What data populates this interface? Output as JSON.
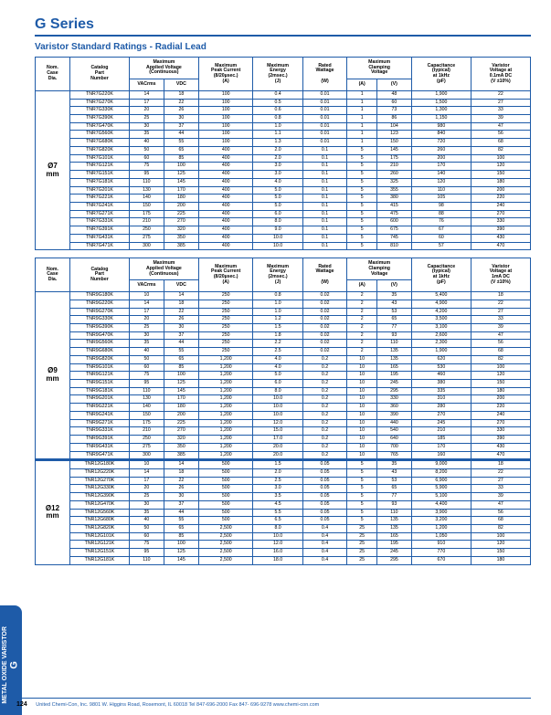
{
  "page_number": "124",
  "title": "G Series",
  "subtitle": "Varistor Standard Ratings - Radial Lead",
  "side_label_main": "G",
  "side_label_sub": "METAL OXIDE VARISTOR",
  "footer": "United Chemi-Con, Inc.  9801 W. Higgins Road, Rosemont, IL 60018  Tel 847-696-2000  Fax 847- 696-9278  www.chemi-con.com",
  "headers": {
    "h1": "Nom.\nCase\nDia.",
    "h2": "Catalog\nPart\nNumber",
    "h3": "Maximum\nApplied Voltage\n(Continuous)",
    "h3a": "VACrms",
    "h3b": "VDC",
    "h4": "Maximum\nPeak Current\n(8/20µsec.)\n(A)",
    "h5": "Maximum\nEnergy\n(2msec.)\n(J)",
    "h6": "Rated\nWattage\n\n(W)",
    "h7": "Maximum\nClamping\nVoltage",
    "h7a": "(A)",
    "h7b": "(V)",
    "h8": "Capacitance\n(typical)\nat 1kHz\n(pF)",
    "h9": "Varistor\nVoltage at\n0.1mA DC\n(V ±10%)",
    "h9b": "Varistor\nVoltage at\n1mA DC\n(V ±10%)"
  },
  "tables": [
    {
      "dia": "Ø7\nmm",
      "rows": [
        [
          "TNR7G220K",
          "14",
          "18",
          "100",
          "0.4",
          "0.01",
          "1",
          "48",
          "1,900",
          "22"
        ],
        [
          "TNR7G270K",
          "17",
          "22",
          "100",
          "0.5",
          "0.01",
          "1",
          "60",
          "1,500",
          "27"
        ],
        [
          "TNR7G330K",
          "20",
          "26",
          "100",
          "0.6",
          "0.01",
          "1",
          "73",
          "1,300",
          "33"
        ],
        [
          "TNR7G390K",
          "25",
          "30",
          "100",
          "0.8",
          "0.01",
          "1",
          "86",
          "1,150",
          "39"
        ],
        [
          "TNR7G470K",
          "30",
          "37",
          "100",
          "1.0",
          "0.01",
          "1",
          "104",
          "980",
          "47"
        ],
        [
          "TNR7G560K",
          "35",
          "44",
          "100",
          "1.1",
          "0.01",
          "1",
          "123",
          "840",
          "56"
        ],
        [
          "TNR7G680K",
          "40",
          "55",
          "100",
          "1.3",
          "0.01",
          "1",
          "150",
          "720",
          "68"
        ],
        [
          "TNR7G820K",
          "50",
          "65",
          "400",
          "2.0",
          "0.1",
          "5",
          "145",
          "260",
          "82"
        ],
        [
          "TNR7G101K",
          "60",
          "85",
          "400",
          "2.0",
          "0.1",
          "5",
          "175",
          "200",
          "100"
        ],
        [
          "TNR7G121K",
          "75",
          "100",
          "400",
          "3.0",
          "0.1",
          "5",
          "210",
          "170",
          "120"
        ],
        [
          "TNR7G151K",
          "95",
          "125",
          "400",
          "3.0",
          "0.1",
          "5",
          "260",
          "140",
          "150"
        ],
        [
          "TNR7G181K",
          "110",
          "145",
          "400",
          "4.0",
          "0.1",
          "5",
          "325",
          "120",
          "180"
        ],
        [
          "TNR7G201K",
          "130",
          "170",
          "400",
          "5.0",
          "0.1",
          "5",
          "355",
          "110",
          "200"
        ],
        [
          "TNR7G221K",
          "140",
          "180",
          "400",
          "5.0",
          "0.1",
          "5",
          "380",
          "105",
          "220"
        ],
        [
          "TNR7G241K",
          "150",
          "200",
          "400",
          "5.0",
          "0.1",
          "5",
          "415",
          "98",
          "240"
        ],
        [
          "TNR7G271K",
          "175",
          "225",
          "400",
          "6.0",
          "0.1",
          "5",
          "475",
          "88",
          "270"
        ],
        [
          "TNR7G331K",
          "210",
          "270",
          "400",
          "8.0",
          "0.1",
          "5",
          "600",
          "76",
          "330"
        ],
        [
          "TNR7G391K",
          "250",
          "320",
          "400",
          "9.0",
          "0.1",
          "5",
          "675",
          "67",
          "390"
        ],
        [
          "TNR7G431K",
          "275",
          "350",
          "400",
          "10.0",
          "0.1",
          "5",
          "745",
          "60",
          "430"
        ],
        [
          "TNR7G471K",
          "300",
          "385",
          "400",
          "10.0",
          "0.1",
          "5",
          "810",
          "57",
          "470"
        ]
      ]
    },
    {
      "dia": "Ø9\nmm",
      "use_h9b": true,
      "rows": [
        [
          "TNR9G180K",
          "10",
          "14",
          "250",
          "0.8",
          "0.02",
          "2",
          "35",
          "5,400",
          "18"
        ],
        [
          "TNR9G220K",
          "14",
          "18",
          "250",
          "1.0",
          "0.02",
          "2",
          "43",
          "4,900",
          "22"
        ],
        [
          "TNR9G270K",
          "17",
          "22",
          "250",
          "1.0",
          "0.02",
          "2",
          "53",
          "4,200",
          "27"
        ],
        [
          "TNR9G330K",
          "20",
          "26",
          "250",
          "1.2",
          "0.02",
          "2",
          "65",
          "3,500",
          "33"
        ],
        [
          "TNR9G390K",
          "25",
          "30",
          "250",
          "1.5",
          "0.02",
          "2",
          "77",
          "3,100",
          "39"
        ],
        [
          "TNR9G470K",
          "30",
          "37",
          "250",
          "1.8",
          "0.02",
          "2",
          "93",
          "2,600",
          "47"
        ],
        [
          "TNR9G560K",
          "35",
          "44",
          "250",
          "2.2",
          "0.02",
          "2",
          "110",
          "2,300",
          "56"
        ],
        [
          "TNR9G680K",
          "40",
          "55",
          "250",
          "2.5",
          "0.02",
          "2",
          "135",
          "1,900",
          "68"
        ],
        [
          "TNR9G820K",
          "50",
          "65",
          "1,200",
          "4.0",
          "0.2",
          "10",
          "135",
          "620",
          "82"
        ],
        [
          "TNR9G101K",
          "60",
          "85",
          "1,200",
          "4.0",
          "0.2",
          "10",
          "165",
          "530",
          "100"
        ],
        [
          "TNR9G121K",
          "75",
          "100",
          "1,200",
          "5.0",
          "0.2",
          "10",
          "195",
          "460",
          "120"
        ],
        [
          "TNR9G151K",
          "95",
          "125",
          "1,200",
          "6.0",
          "0.2",
          "10",
          "245",
          "380",
          "150"
        ],
        [
          "TNR9G181K",
          "110",
          "145",
          "1,200",
          "8.0",
          "0.2",
          "10",
          "295",
          "335",
          "180"
        ],
        [
          "TNR9G201K",
          "130",
          "170",
          "1,200",
          "10.0",
          "0.2",
          "10",
          "330",
          "310",
          "200"
        ],
        [
          "TNR9G221K",
          "140",
          "180",
          "1,200",
          "10.0",
          "0.2",
          "10",
          "360",
          "280",
          "220"
        ],
        [
          "TNR9G241K",
          "150",
          "200",
          "1,200",
          "10.0",
          "0.2",
          "10",
          "390",
          "270",
          "240"
        ],
        [
          "TNR9G271K",
          "175",
          "225",
          "1,200",
          "12.0",
          "0.2",
          "10",
          "440",
          "245",
          "270"
        ],
        [
          "TNR9G331K",
          "210",
          "270",
          "1,200",
          "15.0",
          "0.2",
          "10",
          "540",
          "210",
          "330"
        ],
        [
          "TNR9G391K",
          "250",
          "320",
          "1,200",
          "17.0",
          "0.2",
          "10",
          "640",
          "185",
          "390"
        ],
        [
          "TNR9G431K",
          "275",
          "350",
          "1,200",
          "20.0",
          "0.2",
          "10",
          "700",
          "170",
          "430"
        ],
        [
          "TNR9G471K",
          "300",
          "385",
          "1,200",
          "20.0",
          "0.2",
          "10",
          "765",
          "160",
          "470"
        ]
      ]
    },
    {
      "dia": "Ø12\nmm",
      "no_header": true,
      "rows": [
        [
          "TNR12G180K",
          "10",
          "14",
          "500",
          "1.5",
          "0.05",
          "5",
          "35",
          "9,000",
          "18"
        ],
        [
          "TNR12G220K",
          "14",
          "18",
          "500",
          "2.0",
          "0.05",
          "5",
          "43",
          "8,200",
          "22"
        ],
        [
          "TNR12G270K",
          "17",
          "22",
          "500",
          "2.5",
          "0.05",
          "5",
          "53",
          "6,900",
          "27"
        ],
        [
          "TNR12G330K",
          "20",
          "26",
          "500",
          "3.0",
          "0.05",
          "5",
          "65",
          "5,900",
          "33"
        ],
        [
          "TNR12G390K",
          "25",
          "30",
          "500",
          "3.5",
          "0.05",
          "5",
          "77",
          "5,100",
          "39"
        ],
        [
          "TNR12G470K",
          "30",
          "37",
          "500",
          "4.5",
          "0.05",
          "5",
          "93",
          "4,400",
          "47"
        ],
        [
          "TNR12G560K",
          "35",
          "44",
          "500",
          "5.5",
          "0.05",
          "5",
          "110",
          "3,900",
          "56"
        ],
        [
          "TNR12G680K",
          "40",
          "55",
          "500",
          "6.5",
          "0.05",
          "5",
          "135",
          "3,200",
          "68"
        ],
        [
          "TNR12G820K",
          "50",
          "65",
          "2,500",
          "8.0",
          "0.4",
          "25",
          "135",
          "1,200",
          "82"
        ],
        [
          "TNR12G101K",
          "60",
          "85",
          "2,500",
          "10.0",
          "0.4",
          "25",
          "165",
          "1,050",
          "100"
        ],
        [
          "TNR12G121K",
          "75",
          "100",
          "2,500",
          "12.0",
          "0.4",
          "25",
          "195",
          "910",
          "120"
        ],
        [
          "TNR12G151K",
          "95",
          "125",
          "2,500",
          "16.0",
          "0.4",
          "25",
          "245",
          "770",
          "150"
        ],
        [
          "TNR12G181K",
          "110",
          "145",
          "2,500",
          "18.0",
          "0.4",
          "25",
          "295",
          "670",
          "180"
        ]
      ]
    }
  ]
}
